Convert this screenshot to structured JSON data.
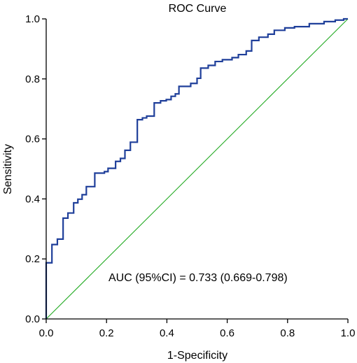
{
  "colors": {
    "roc_line": "#1f3f9a",
    "reference_line": "#22aa22",
    "axes": "#000000",
    "background": "#ffffff"
  },
  "chart_data": {
    "type": "line",
    "title": "ROC Curve",
    "xlabel": "1-Specificity",
    "ylabel": "Sensitivity",
    "xlim": [
      0.0,
      1.0
    ],
    "ylim": [
      0.0,
      1.0
    ],
    "xticks": [
      "0.0",
      "0.2",
      "0.4",
      "0.6",
      "0.8",
      "1.0"
    ],
    "yticks": [
      "0.0",
      "0.2",
      "0.4",
      "0.6",
      "0.8",
      "1.0"
    ],
    "grid": false,
    "annotation": "AUC (95%CI) = 0.733 (0.669-0.798)",
    "series": [
      {
        "points": [
          [
            0.0,
            0.0
          ],
          [
            0.0,
            0.187
          ],
          [
            0.019,
            0.187
          ],
          [
            0.019,
            0.248
          ],
          [
            0.037,
            0.248
          ],
          [
            0.037,
            0.266
          ],
          [
            0.056,
            0.266
          ],
          [
            0.056,
            0.336
          ],
          [
            0.072,
            0.336
          ],
          [
            0.072,
            0.353
          ],
          [
            0.091,
            0.353
          ],
          [
            0.091,
            0.387
          ],
          [
            0.105,
            0.387
          ],
          [
            0.105,
            0.399
          ],
          [
            0.119,
            0.399
          ],
          [
            0.119,
            0.414
          ],
          [
            0.133,
            0.414
          ],
          [
            0.133,
            0.441
          ],
          [
            0.161,
            0.441
          ],
          [
            0.161,
            0.486
          ],
          [
            0.193,
            0.486
          ],
          [
            0.193,
            0.491
          ],
          [
            0.205,
            0.491
          ],
          [
            0.205,
            0.502
          ],
          [
            0.23,
            0.502
          ],
          [
            0.23,
            0.525
          ],
          [
            0.246,
            0.525
          ],
          [
            0.246,
            0.535
          ],
          [
            0.261,
            0.535
          ],
          [
            0.261,
            0.562
          ],
          [
            0.279,
            0.562
          ],
          [
            0.279,
            0.589
          ],
          [
            0.302,
            0.589
          ],
          [
            0.302,
            0.664
          ],
          [
            0.319,
            0.664
          ],
          [
            0.319,
            0.67
          ],
          [
            0.333,
            0.67
          ],
          [
            0.333,
            0.676
          ],
          [
            0.358,
            0.676
          ],
          [
            0.358,
            0.72
          ],
          [
            0.379,
            0.72
          ],
          [
            0.379,
            0.727
          ],
          [
            0.398,
            0.727
          ],
          [
            0.398,
            0.731
          ],
          [
            0.414,
            0.731
          ],
          [
            0.414,
            0.742
          ],
          [
            0.428,
            0.742
          ],
          [
            0.428,
            0.75
          ],
          [
            0.44,
            0.75
          ],
          [
            0.44,
            0.775
          ],
          [
            0.479,
            0.775
          ],
          [
            0.479,
            0.785
          ],
          [
            0.5,
            0.785
          ],
          [
            0.5,
            0.802
          ],
          [
            0.512,
            0.802
          ],
          [
            0.512,
            0.836
          ],
          [
            0.537,
            0.836
          ],
          [
            0.537,
            0.845
          ],
          [
            0.56,
            0.845
          ],
          [
            0.56,
            0.858
          ],
          [
            0.584,
            0.858
          ],
          [
            0.584,
            0.864
          ],
          [
            0.616,
            0.864
          ],
          [
            0.616,
            0.871
          ],
          [
            0.637,
            0.871
          ],
          [
            0.637,
            0.881
          ],
          [
            0.663,
            0.881
          ],
          [
            0.663,
            0.893
          ],
          [
            0.681,
            0.893
          ],
          [
            0.681,
            0.928
          ],
          [
            0.705,
            0.928
          ],
          [
            0.705,
            0.939
          ],
          [
            0.735,
            0.939
          ],
          [
            0.735,
            0.949
          ],
          [
            0.756,
            0.949
          ],
          [
            0.756,
            0.962
          ],
          [
            0.791,
            0.962
          ],
          [
            0.791,
            0.97
          ],
          [
            0.823,
            0.97
          ],
          [
            0.823,
            0.974
          ],
          [
            0.872,
            0.974
          ],
          [
            0.872,
            0.984
          ],
          [
            0.921,
            0.984
          ],
          [
            0.921,
            0.991
          ],
          [
            0.958,
            0.991
          ],
          [
            0.958,
            0.996
          ],
          [
            0.986,
            0.996
          ],
          [
            0.986,
            1.0
          ],
          [
            1.0,
            1.0
          ]
        ]
      },
      {
        "points": [
          [
            0.0,
            0.0
          ],
          [
            1.0,
            1.0
          ]
        ]
      }
    ]
  }
}
